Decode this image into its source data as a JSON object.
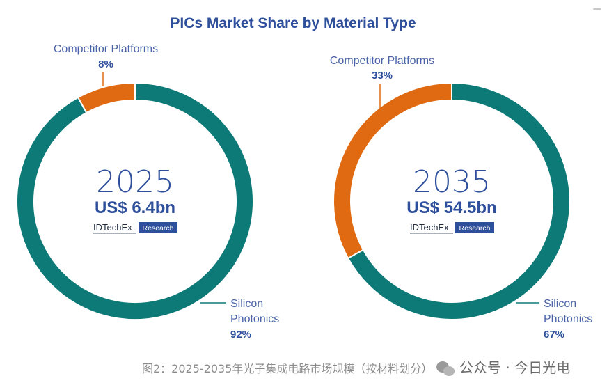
{
  "chart_data": {
    "type": "pie",
    "title": "PICs Market Share by Material Type",
    "charts": [
      {
        "year": "2025",
        "value_label": "US$ 6.4bn",
        "brand": "IDTechEx",
        "brand_badge": "Research",
        "slices": [
          {
            "name": "Competitor Platforms",
            "pct_label": "8%",
            "value": 8,
            "color": "#e06a12"
          },
          {
            "name_line1": "Silicon",
            "name_line2": "Photonics",
            "pct_label": "92%",
            "value": 92,
            "color": "#0d7a78"
          }
        ]
      },
      {
        "year": "2035",
        "value_label": "US$ 54.5bn",
        "brand": "IDTechEx",
        "brand_badge": "Research",
        "slices": [
          {
            "name": "Competitor Platforms",
            "pct_label": "33%",
            "value": 33,
            "color": "#e06a12"
          },
          {
            "name_line1": "Silicon",
            "name_line2": "Photonics",
            "pct_label": "67%",
            "value": 67,
            "color": "#0d7a78"
          }
        ]
      }
    ]
  },
  "caption": "图2：2025-2035年光子集成电路市场规模（按材料划分）",
  "watermark": "公众号 · 今日光电",
  "colors": {
    "title": "#2e4f9c",
    "label": "#4a63a8",
    "competitor": "#e06a12",
    "silicon": "#0d7a78",
    "badge": "#2e4f9c"
  }
}
